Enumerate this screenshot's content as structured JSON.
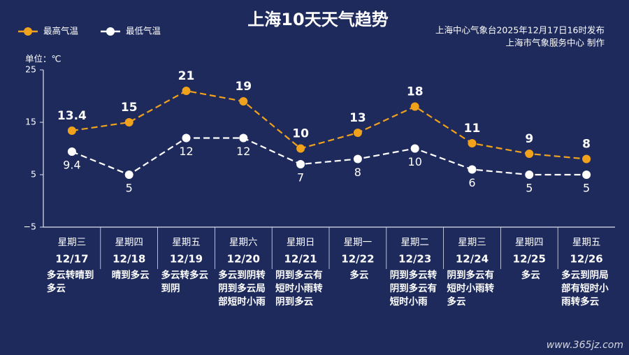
{
  "chart_data": {
    "type": "line",
    "title": "上海10天天气趋势",
    "source_lines": [
      "上海中心气象台2025年12月17日16时发布",
      "上海市气象服务中心 制作"
    ],
    "unit_label": "单位：℃",
    "watermark": "www.365jz.com",
    "weekdays": [
      "星期三",
      "星期四",
      "星期五",
      "星期六",
      "星期日",
      "星期一",
      "星期二",
      "星期三",
      "星期四",
      "星期五"
    ],
    "weekday_colors": [
      "#dfe3f0",
      "#dfe3f0",
      "#dfe3f0",
      "#f0a21c",
      "#f0a21c",
      "#dfe3f0",
      "#dfe3f0",
      "#dfe3f0",
      "#dfe3f0",
      "#dfe3f0"
    ],
    "categories": [
      "12/17",
      "12/18",
      "12/19",
      "12/20",
      "12/21",
      "12/22",
      "12/23",
      "12/24",
      "12/25",
      "12/26"
    ],
    "weather": [
      "多云转晴到多云",
      "晴到多云",
      "多云转多云到阴",
      "多云到阴转阴到多云局部短时小雨",
      "阴到多云有短时小雨转阴到多云",
      "多云",
      "阴到多云转阴到多云有短时小雨",
      "阴到多云有短时小雨转多云",
      "多云",
      "多云到阴局部有短时小雨转多云"
    ],
    "series": [
      {
        "name": "最高气温",
        "color": "#f0a21c",
        "values": [
          13.4,
          15,
          21,
          19,
          10,
          13,
          18,
          11,
          9,
          8
        ]
      },
      {
        "name": "最低气温",
        "color": "#ffffff",
        "values": [
          9.4,
          5,
          12,
          12,
          7,
          8,
          10,
          6,
          5,
          5
        ]
      }
    ],
    "ylim": [
      -5,
      25
    ],
    "yticks": [
      {
        "value": -5,
        "label": "−5"
      },
      5,
      15,
      25
    ],
    "grid": false
  }
}
